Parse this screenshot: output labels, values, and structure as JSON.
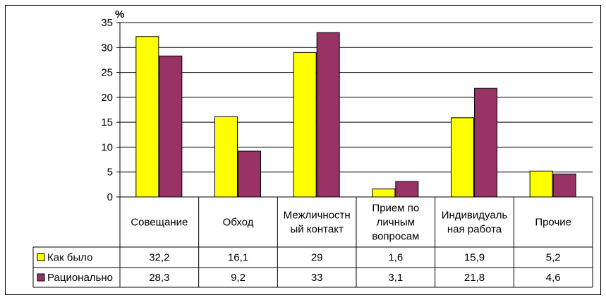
{
  "chart_data": {
    "type": "bar",
    "ylabel": "%",
    "ylim": [
      0,
      35
    ],
    "yticks": [
      "0",
      "5",
      "10",
      "15",
      "20",
      "25",
      "30",
      "35"
    ],
    "grid": true,
    "legend": "data-table-left",
    "categories": [
      [
        "Совещание"
      ],
      [
        "Обход"
      ],
      [
        "Межличностн",
        "ый контакт"
      ],
      [
        "Прием по",
        "личным",
        "вопросам"
      ],
      [
        "Индивидуаль",
        "ная работа"
      ],
      [
        "Прочие"
      ]
    ],
    "series": [
      {
        "name": "Как было",
        "color": "#FFFF00",
        "values": [
          32.2,
          16.1,
          29,
          1.6,
          15.9,
          5.2
        ],
        "labels": [
          "32,2",
          "16,1",
          "29",
          "1,6",
          "15,9",
          "5,2"
        ]
      },
      {
        "name": "Рационально",
        "color": "#993366",
        "values": [
          28.3,
          9.2,
          33,
          3.1,
          21.8,
          4.6
        ],
        "labels": [
          "28,3",
          "9,2",
          "33",
          "3,1",
          "21,8",
          "4,6"
        ]
      }
    ]
  }
}
